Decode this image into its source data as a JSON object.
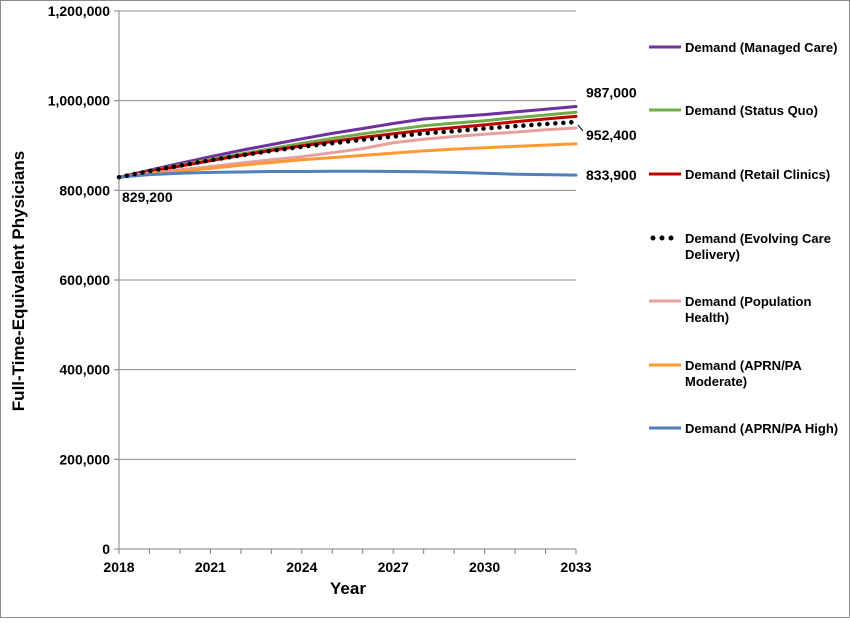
{
  "chart_data": {
    "type": "line",
    "title": "",
    "xlabel": "Year",
    "ylabel": "Full-Time-Equivalent Physicians",
    "x": [
      2018,
      2019,
      2020,
      2021,
      2022,
      2023,
      2024,
      2025,
      2026,
      2027,
      2028,
      2029,
      2030,
      2031,
      2032,
      2033
    ],
    "xticks": [
      2018,
      2021,
      2024,
      2027,
      2030,
      2033
    ],
    "xtick_labels": [
      "2018",
      "2021",
      "2024",
      "2027",
      "2030",
      "2033"
    ],
    "xlim": [
      2018,
      2033
    ],
    "ylim": [
      0,
      1200000
    ],
    "yticks": [
      0,
      200000,
      400000,
      600000,
      800000,
      1000000,
      1200000
    ],
    "ytick_labels": [
      "0",
      "200,000",
      "400,000",
      "600,000",
      "800,000",
      "1,000,000",
      "1,200,000"
    ],
    "grid": "horizontal",
    "legend_position": "right",
    "series": [
      {
        "name": "Demand (Managed Care)",
        "color": "#7030a0",
        "style": "solid",
        "values": [
          829200,
          845000,
          860000,
          875000,
          889000,
          902000,
          915000,
          927000,
          938000,
          949000,
          959000,
          964000,
          969000,
          975000,
          981000,
          987000
        ]
      },
      {
        "name": "Demand (Status Quo)",
        "color": "#70ad47",
        "style": "solid",
        "values": [
          829200,
          843000,
          856000,
          869000,
          881000,
          893000,
          905000,
          916000,
          926000,
          935000,
          944000,
          950000,
          955000,
          962000,
          968000,
          974000
        ]
      },
      {
        "name": "Demand (Retail Clinics)",
        "color": "#c00000",
        "style": "solid",
        "values": [
          829200,
          842000,
          854000,
          866000,
          878000,
          889000,
          899000,
          909000,
          918000,
          926000,
          934000,
          940000,
          946000,
          953000,
          959000,
          965000
        ]
      },
      {
        "name": "Demand (Evolving Care Delivery)",
        "color": "#000000",
        "style": "dotted",
        "values": [
          829200,
          843000,
          855000,
          867000,
          878000,
          888000,
          897000,
          905000,
          913000,
          920000,
          927000,
          932000,
          938000,
          943000,
          948000,
          952400
        ]
      },
      {
        "name": "Demand (Population Health)",
        "color": "#e6a0a0",
        "style": "solid",
        "values": [
          829200,
          838000,
          846000,
          853000,
          861000,
          868000,
          875000,
          884000,
          893000,
          906000,
          914000,
          920000,
          925000,
          930000,
          935000,
          939000
        ]
      },
      {
        "name": "Demand (APRN/PA Moderate)",
        "color": "#ff9933",
        "style": "solid",
        "values": [
          829200,
          836000,
          843000,
          849000,
          856000,
          862000,
          868000,
          873000,
          878000,
          883000,
          888000,
          892000,
          895000,
          898000,
          901000,
          904000
        ]
      },
      {
        "name": "Demand (APRN/PA High)",
        "color": "#4f81bd",
        "style": "solid",
        "values": [
          829200,
          835000,
          838000,
          840000,
          841000,
          842000,
          842000,
          842500,
          842500,
          842000,
          841500,
          840000,
          838000,
          836000,
          835000,
          833900
        ]
      }
    ],
    "legend_entries": [
      {
        "label_lines": [
          "Demand (Managed Care)"
        ]
      },
      {
        "label_lines": [
          "Demand (Status Quo)"
        ]
      },
      {
        "label_lines": [
          "Demand (Retail Clinics)"
        ]
      },
      {
        "label_lines": [
          "Demand (Evolving Care",
          "Delivery)"
        ]
      },
      {
        "label_lines": [
          "Demand (Population",
          "Health)"
        ]
      },
      {
        "label_lines": [
          "Demand (APRN/PA",
          "Moderate)"
        ]
      },
      {
        "label_lines": [
          "Demand (APRN/PA High)"
        ]
      }
    ],
    "annotations": [
      {
        "text": "829,200",
        "x": 2018,
        "y": 829200,
        "anchor": "below-right"
      },
      {
        "text": "987,000",
        "x": 2033,
        "y": 987000,
        "anchor": "right"
      },
      {
        "text": "952,400",
        "x": 2033,
        "y": 952400,
        "anchor": "right-leader"
      },
      {
        "text": "833,900",
        "x": 2033,
        "y": 833900,
        "anchor": "right"
      }
    ]
  }
}
